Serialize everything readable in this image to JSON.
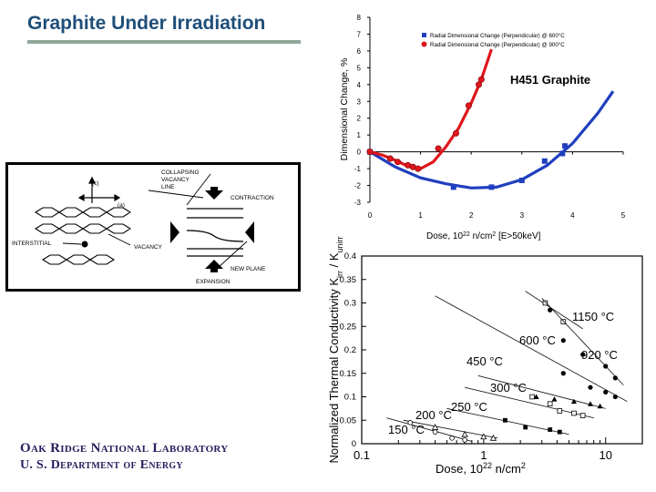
{
  "slide": {
    "title": "Graphite Under Irradiation",
    "org_name": "Oak Ridge National Laboratory",
    "dept_name": "U. S. Department of Energy",
    "colors": {
      "title": "#1f4e79",
      "org": "#26215e",
      "accent_rule": "#8fa89a"
    }
  },
  "diagram": {
    "labels": {
      "c_axis": "(c)",
      "a_axis": "(a)",
      "collapsing_line_1": "COLLAPSING",
      "collapsing_line_2": "VACANCY",
      "collapsing_line_3": "LINE",
      "contraction": "CONTRACTION",
      "interstitial": "INTERSTITIAL",
      "vacancy": "VACANCY",
      "new_plane": "NEW PLANE",
      "expansion": "EXPANSION"
    }
  },
  "chart_data": [
    {
      "type": "scatter",
      "title": "",
      "annotation": "H451 Graphite",
      "xlabel": "Dose, 10^22 n/cm^2 [E>50keV]",
      "ylabel": "Dimensional Change, %",
      "xlim": [
        0,
        5
      ],
      "ylim": [
        -3,
        8
      ],
      "xticks": [
        0,
        1,
        2,
        3,
        4,
        5
      ],
      "yticks": [
        -3,
        -2,
        -1,
        0,
        1,
        2,
        3,
        4,
        5,
        6,
        7,
        8
      ],
      "legend_position": "top-right",
      "series": [
        {
          "name": "Radial Dimensional Change (Perpendicular) @ 600°C",
          "marker": "square",
          "color": "#1f3fbf",
          "points": [
            [
              0.0,
              0.0
            ],
            [
              1.65,
              -2.1
            ],
            [
              2.4,
              -2.1
            ],
            [
              3.0,
              -1.7
            ],
            [
              3.45,
              -0.55
            ],
            [
              3.8,
              -0.1
            ],
            [
              3.85,
              0.35
            ]
          ],
          "fit_curve": [
            [
              0,
              0
            ],
            [
              0.5,
              -0.9
            ],
            [
              1.0,
              -1.55
            ],
            [
              1.5,
              -1.9
            ],
            [
              2.0,
              -2.15
            ],
            [
              2.5,
              -2.1
            ],
            [
              3.0,
              -1.65
            ],
            [
              3.5,
              -0.8
            ],
            [
              4.0,
              0.5
            ],
            [
              4.5,
              2.3
            ],
            [
              4.8,
              3.6
            ]
          ]
        },
        {
          "name": "Radial Dimensional Change (Perpendicular) @ 900°C",
          "marker": "circle",
          "color": "#e0161d",
          "points": [
            [
              0.0,
              0.0
            ],
            [
              0.4,
              -0.4
            ],
            [
              0.55,
              -0.6
            ],
            [
              0.75,
              -0.8
            ],
            [
              0.85,
              -0.9
            ],
            [
              0.95,
              -1.0
            ],
            [
              1.35,
              0.2
            ],
            [
              1.7,
              1.1
            ],
            [
              1.95,
              2.75
            ],
            [
              2.15,
              4.0
            ],
            [
              2.2,
              4.3
            ]
          ],
          "fit_curve": [
            [
              0,
              0
            ],
            [
              0.25,
              -0.2
            ],
            [
              0.5,
              -0.5
            ],
            [
              0.75,
              -0.85
            ],
            [
              1.0,
              -1.0
            ],
            [
              1.25,
              -0.6
            ],
            [
              1.5,
              0.3
            ],
            [
              1.75,
              1.4
            ],
            [
              2.0,
              2.9
            ],
            [
              2.2,
              4.3
            ],
            [
              2.4,
              6.1
            ]
          ]
        }
      ]
    },
    {
      "type": "scatter",
      "title": "",
      "xlabel": "Dose, 10^22 n/cm^2",
      "ylabel": "Normalized Thermal Conductivity K_irr / K_unirr",
      "xscale": "log",
      "xlim": [
        0.1,
        20
      ],
      "ylim": [
        0,
        0.4
      ],
      "xticks": [
        0.1,
        1,
        10
      ],
      "yticks": [
        0,
        0.05,
        0.1,
        0.15,
        0.2,
        0.25,
        0.3,
        0.35,
        0.4
      ],
      "series": [
        {
          "name": "1150 °C",
          "marker": "open-square",
          "points": [
            [
              3.2,
              0.3
            ],
            [
              4.5,
              0.26
            ]
          ],
          "fit_line": [
            [
              2.2,
              0.325
            ],
            [
              6.5,
              0.245
            ]
          ]
        },
        {
          "name": "920 °C",
          "marker": "filled-circle",
          "points": [
            [
              3.5,
              0.285
            ],
            [
              4.5,
              0.22
            ],
            [
              6.5,
              0.19
            ],
            [
              10,
              0.165
            ],
            [
              12,
              0.14
            ]
          ],
          "fit_line": [
            [
              3.0,
              0.31
            ],
            [
              14,
              0.125
            ]
          ]
        },
        {
          "name": "600 °C",
          "marker": "filled-circle",
          "points": [
            [
              4.5,
              0.15
            ],
            [
              7.5,
              0.12
            ],
            [
              10,
              0.11
            ],
            [
              12,
              0.1
            ]
          ],
          "fit_line": [
            [
              0.4,
              0.315
            ],
            [
              15,
              0.09
            ]
          ]
        },
        {
          "name": "450 °C",
          "marker": "filled-triangle",
          "points": [
            [
              2.7,
              0.1
            ],
            [
              3.8,
              0.095
            ],
            [
              5.5,
              0.09
            ],
            [
              7.5,
              0.085
            ],
            [
              9,
              0.08
            ]
          ],
          "fit_line": [
            [
              0.9,
              0.145
            ],
            [
              10,
              0.075
            ]
          ]
        },
        {
          "name": "300 °C",
          "marker": "open-square",
          "points": [
            [
              2.5,
              0.1
            ],
            [
              3.5,
              0.085
            ],
            [
              4.2,
              0.07
            ],
            [
              5.5,
              0.065
            ],
            [
              6.5,
              0.06
            ]
          ],
          "fit_line": [
            [
              0.7,
              0.12
            ],
            [
              8,
              0.055
            ]
          ]
        },
        {
          "name": "250 °C",
          "marker": "filled-square",
          "points": [
            [
              1.5,
              0.05
            ],
            [
              2.2,
              0.035
            ],
            [
              3.5,
              0.03
            ],
            [
              4.2,
              0.025
            ]
          ],
          "fit_line": [
            [
              0.5,
              0.075
            ],
            [
              5,
              0.02
            ]
          ]
        },
        {
          "name": "200 °C",
          "marker": "open-triangle",
          "points": [
            [
              0.4,
              0.035
            ],
            [
              0.7,
              0.02
            ],
            [
              1.0,
              0.015
            ],
            [
              1.2,
              0.012
            ]
          ],
          "fit_line": [
            [
              0.22,
              0.05
            ],
            [
              1.3,
              0.012
            ]
          ]
        },
        {
          "name": "150 °C",
          "marker": "open-circle",
          "points": [
            [
              0.25,
              0.045
            ],
            [
              0.4,
              0.025
            ],
            [
              0.55,
              0.012
            ],
            [
              0.7,
              0.008
            ]
          ],
          "fit_line": [
            [
              0.16,
              0.055
            ],
            [
              0.8,
              0.005
            ]
          ]
        }
      ]
    }
  ]
}
